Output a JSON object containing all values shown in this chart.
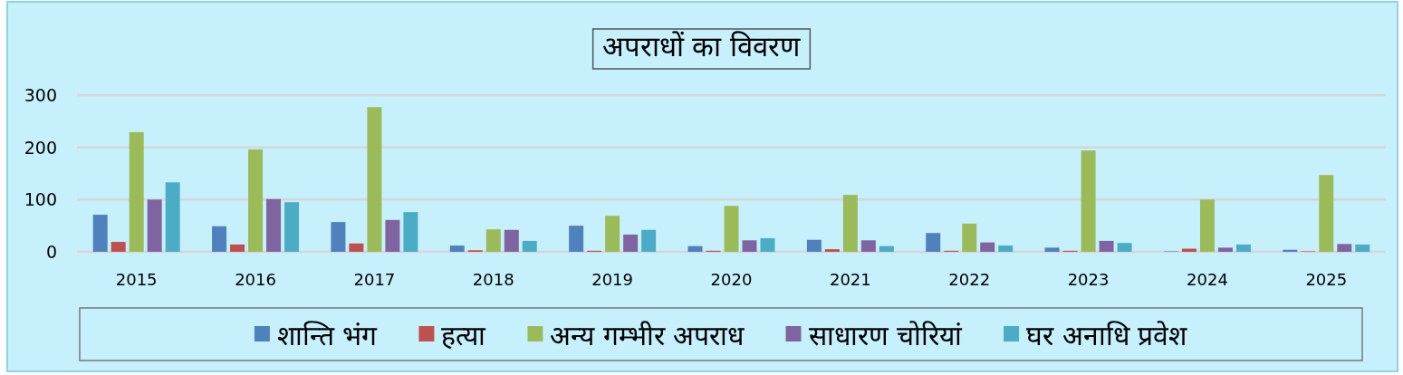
{
  "chart_data": {
    "type": "bar",
    "title": "अपराधों का विवरण",
    "categories": [
      "2015",
      "2016",
      "2017",
      "2018",
      "2019",
      "2020",
      "2021",
      "2022",
      "2023",
      "2024",
      "2025"
    ],
    "series": [
      {
        "name": "शान्ति भंग",
        "color": "#4f81bd",
        "values": [
          71,
          49,
          57,
          12,
          50,
          11,
          23,
          36,
          8,
          1,
          4
        ]
      },
      {
        "name": "हत्या",
        "color": "#c0504d",
        "values": [
          19,
          14,
          16,
          3,
          2,
          2,
          5,
          2,
          2,
          6,
          1
        ]
      },
      {
        "name": "अन्य गम्भीर अपराध",
        "color": "#9bbb59",
        "values": [
          229,
          196,
          277,
          43,
          69,
          88,
          109,
          54,
          194,
          100,
          147
        ]
      },
      {
        "name": "साधारण चोरियां",
        "color": "#8064a2",
        "values": [
          100,
          101,
          61,
          42,
          33,
          22,
          22,
          18,
          21,
          8,
          15
        ]
      },
      {
        "name": "घर अनाधि प्रवेश",
        "color": "#4bacc6",
        "values": [
          133,
          95,
          76,
          21,
          42,
          26,
          11,
          12,
          17,
          14,
          14
        ]
      }
    ],
    "ylim": [
      0,
      300
    ],
    "yticks": [
      0,
      100,
      200,
      300
    ],
    "grid": "y",
    "legend": "bottom"
  }
}
